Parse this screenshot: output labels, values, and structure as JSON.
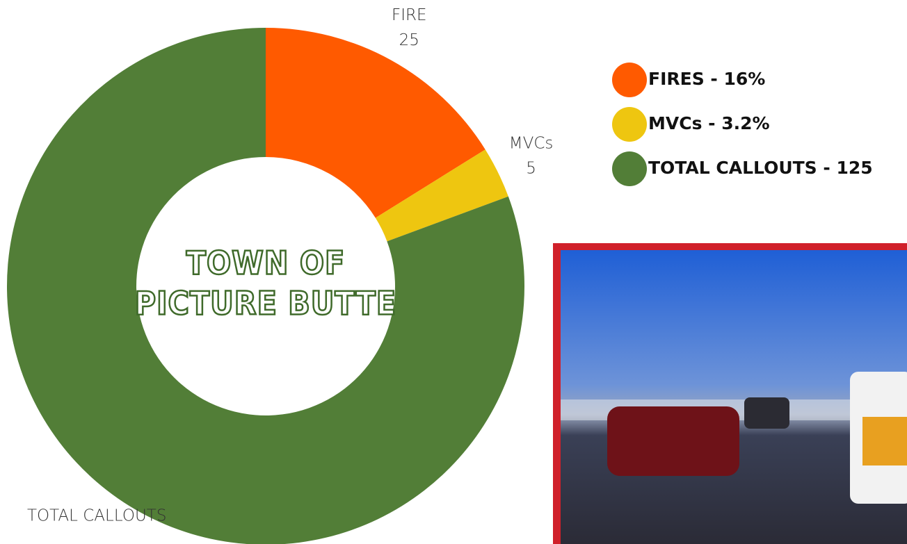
{
  "chart_data": {
    "type": "donut",
    "title": [
      "TOWN OF",
      "PICTURE BUTTE"
    ],
    "categories": [
      "FIRE",
      "MVCs",
      "TOTAL CALLOUTS"
    ],
    "values": [
      25,
      5,
      125
    ],
    "colors": [
      "#ff5a00",
      "#eec610",
      "#527e37"
    ],
    "legend": [
      "FIRES - 16%",
      "MVCs - 3.2%",
      "TOTAL CALLOUTS - 125"
    ],
    "legend_position": "upper right"
  }
}
